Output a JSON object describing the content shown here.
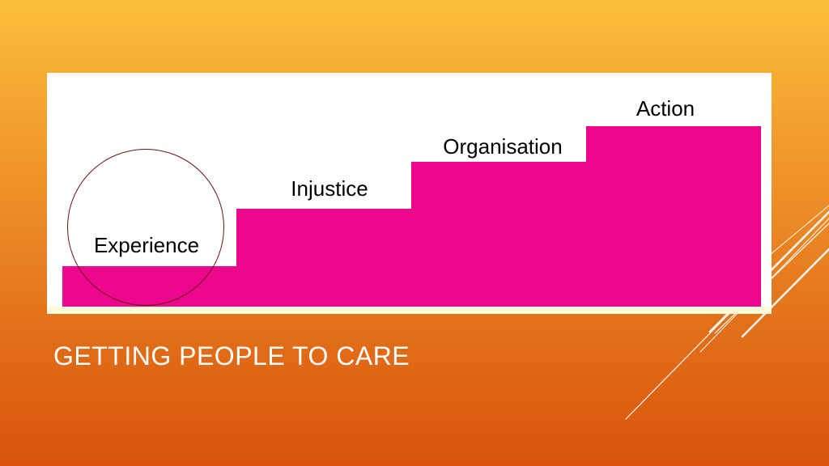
{
  "slide": {
    "title": "GETTING PEOPLE TO CARE",
    "colors": {
      "step_fill": "#ec078c",
      "circle_stroke": "#6b1010",
      "background_top": "#fbbf3c",
      "background_bottom": "#d9540a"
    }
  },
  "diagram": {
    "steps": [
      {
        "label": "Experience",
        "level": 1,
        "highlighted": true
      },
      {
        "label": "Injustice",
        "level": 2
      },
      {
        "label": "Organisation",
        "level": 3
      },
      {
        "label": "Action",
        "level": 4
      }
    ]
  }
}
